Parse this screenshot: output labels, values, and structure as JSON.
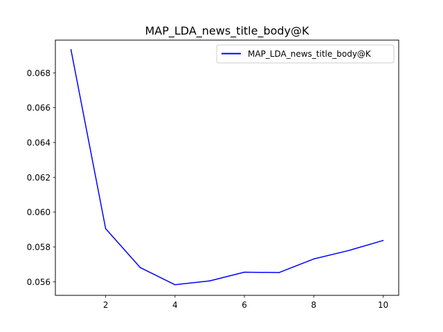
{
  "chart_data": {
    "type": "line",
    "title": "MAP_LDA_news_title_body@K",
    "xlabel": "",
    "ylabel": "",
    "xlim": [
      0.55,
      10.45
    ],
    "ylim": [
      0.05522,
      0.06988
    ],
    "x_ticks": [
      2,
      4,
      6,
      8,
      10
    ],
    "y_ticks": [
      0.056,
      0.058,
      0.06,
      0.062,
      0.064,
      0.066,
      0.068
    ],
    "x_tick_labels": [
      "2",
      "4",
      "6",
      "8",
      "10"
    ],
    "y_tick_labels": [
      "0.056",
      "0.058",
      "0.060",
      "0.062",
      "0.064",
      "0.066",
      "0.068"
    ],
    "grid": false,
    "legend_position": "upper right",
    "series": [
      {
        "name": "MAP_LDA_news_title_body@K",
        "color": "#0000ff",
        "x": [
          1,
          2,
          3,
          4,
          5,
          6,
          7,
          8,
          9,
          10
        ],
        "y": [
          0.06933,
          0.05905,
          0.05681,
          0.05583,
          0.05605,
          0.05655,
          0.05653,
          0.05731,
          0.05779,
          0.05837
        ]
      }
    ]
  }
}
